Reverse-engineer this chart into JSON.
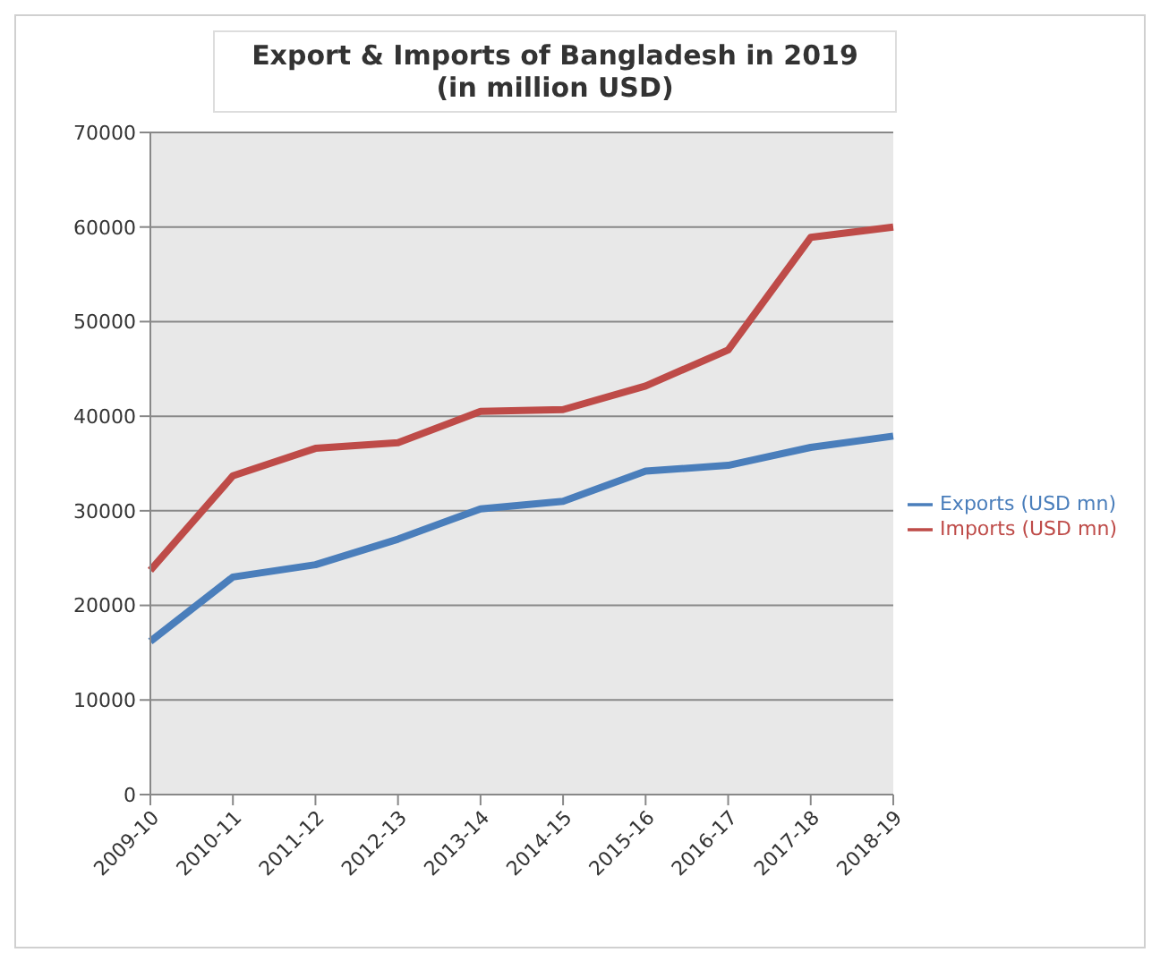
{
  "chart_data": {
    "type": "line",
    "title": "Export & Imports of Bangladesh in 2019",
    "subtitle": "(in million USD)",
    "categories": [
      "2009-10",
      "2010-11",
      "2011-12",
      "2012-13",
      "2013-14",
      "2014-15",
      "2015-16",
      "2016-17",
      "2017-18",
      "2018-19"
    ],
    "series": [
      {
        "name": "Exports (USD mn)",
        "color": "#4a7ebb",
        "values": [
          16200,
          23000,
          24300,
          27000,
          30200,
          31000,
          34200,
          34800,
          36700,
          37900
        ]
      },
      {
        "name": "Imports (USD mn)",
        "color": "#be4b48",
        "values": [
          23700,
          33700,
          36600,
          37200,
          40500,
          40700,
          43200,
          47000,
          58900,
          60000
        ]
      }
    ],
    "ylim": [
      0,
      70000
    ],
    "yticks": [
      0,
      10000,
      20000,
      30000,
      40000,
      50000,
      60000,
      70000
    ],
    "grid": "y",
    "legend": "right",
    "marker": "none",
    "line_style": "solid"
  }
}
